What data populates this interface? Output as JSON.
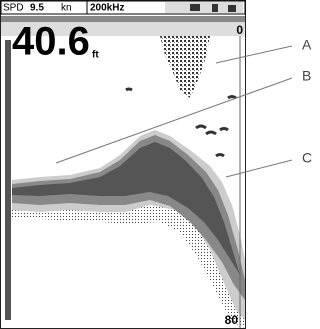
{
  "status_bar": {
    "speed_label": "SPD",
    "speed_value": "9.5",
    "speed_unit": "kn",
    "frequency": "200kHz"
  },
  "depth": {
    "value": "40.6",
    "unit": "ft"
  },
  "scale": {
    "top": "0",
    "bottom": "80"
  },
  "callouts": [
    "A",
    "B",
    "C"
  ]
}
